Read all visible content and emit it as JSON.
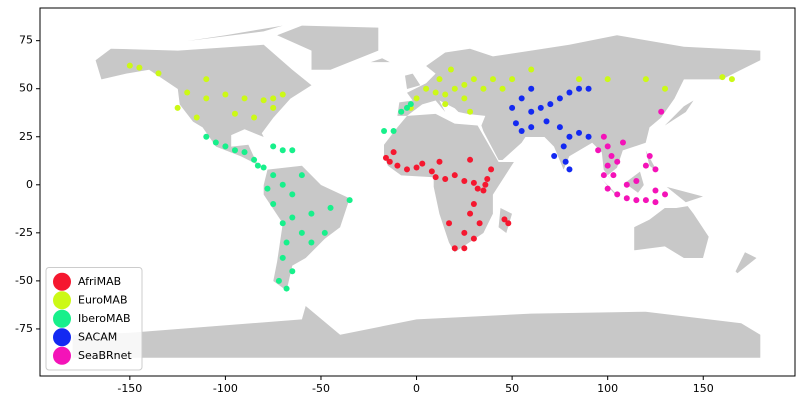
{
  "chart_data": {
    "type": "scatter",
    "xlim": [
      -197,
      198
    ],
    "ylim": [
      -99.5,
      92
    ],
    "xticks": [
      -150,
      -100,
      -50,
      0,
      50,
      100,
      150
    ],
    "yticks": [
      -75,
      -50,
      -25,
      0,
      25,
      50,
      75
    ],
    "grid": false,
    "legend": "lower left",
    "series": [
      {
        "name": "AfriMAB",
        "color": "#f5172f",
        "x": [
          -16,
          -14,
          -10,
          -5,
          0,
          3,
          8,
          12,
          10,
          15,
          20,
          25,
          30,
          32,
          35,
          37,
          39,
          36,
          30,
          28,
          33,
          25,
          20,
          25,
          30,
          46,
          48,
          17,
          -12,
          28
        ],
        "y": [
          14,
          12,
          10,
          8,
          9,
          11,
          7,
          12,
          4,
          3,
          5,
          2,
          1,
          -2,
          -3,
          3,
          8,
          0,
          -10,
          -15,
          -20,
          -25,
          -33,
          -33,
          -28,
          -18,
          -20,
          -20,
          17,
          13
        ]
      },
      {
        "name": "EuroMAB",
        "color": "#ccf916",
        "x": [
          -120,
          -110,
          -100,
          -90,
          -80,
          -75,
          -125,
          -115,
          -95,
          -85,
          -110,
          -150,
          -145,
          -135,
          -70,
          -75,
          5,
          10,
          15,
          20,
          25,
          0,
          -3,
          12,
          18,
          30,
          35,
          40,
          25,
          15,
          45,
          50,
          60,
          85,
          100,
          120,
          130,
          160,
          165,
          28
        ],
        "y": [
          48,
          45,
          47,
          45,
          44,
          40,
          40,
          35,
          37,
          35,
          55,
          62,
          61,
          58,
          47,
          45,
          50,
          48,
          47,
          50,
          52,
          45,
          40,
          55,
          60,
          55,
          50,
          55,
          45,
          42,
          50,
          55,
          60,
          55,
          55,
          55,
          50,
          56,
          55,
          38
        ]
      },
      {
        "name": "IberoMAB",
        "color": "#17f08b",
        "x": [
          -5,
          -8,
          -3,
          -12,
          -17,
          -110,
          -105,
          -100,
          -95,
          -90,
          -85,
          -83,
          -80,
          -75,
          -70,
          -65,
          -75,
          -70,
          -78,
          -60,
          -65,
          -75,
          -65,
          -55,
          -45,
          -70,
          -60,
          -48,
          -55,
          -68,
          -70,
          -65,
          -72,
          -68,
          -35
        ],
        "y": [
          40,
          38,
          42,
          28,
          28,
          25,
          22,
          20,
          18,
          17,
          13,
          10,
          9,
          20,
          18,
          18,
          5,
          0,
          -2,
          5,
          -5,
          -10,
          -17,
          -15,
          -12,
          -20,
          -25,
          -25,
          -30,
          -30,
          -38,
          -45,
          -50,
          -54,
          -8
        ]
      },
      {
        "name": "SACAM",
        "color": "#1329f2",
        "x": [
          55,
          60,
          65,
          70,
          75,
          80,
          85,
          90,
          60,
          50,
          52,
          60,
          68,
          75,
          80,
          85,
          78,
          80,
          77,
          72,
          55,
          90
        ],
        "y": [
          45,
          38,
          40,
          42,
          45,
          48,
          50,
          50,
          50,
          40,
          32,
          30,
          33,
          30,
          25,
          27,
          12,
          8,
          20,
          15,
          28,
          25
        ]
      },
      {
        "name": "SeaBRnet",
        "color": "#f413b8",
        "x": [
          98,
          100,
          102,
          105,
          108,
          95,
          100,
          103,
          110,
          115,
          120,
          122,
          125,
          110,
          115,
          120,
          125,
          130,
          125,
          98,
          100,
          105,
          128
        ],
        "y": [
          25,
          20,
          15,
          12,
          22,
          18,
          10,
          5,
          0,
          2,
          10,
          15,
          8,
          -7,
          -8,
          -8,
          -9,
          -5,
          -3,
          5,
          -2,
          -5,
          38
        ]
      }
    ]
  }
}
